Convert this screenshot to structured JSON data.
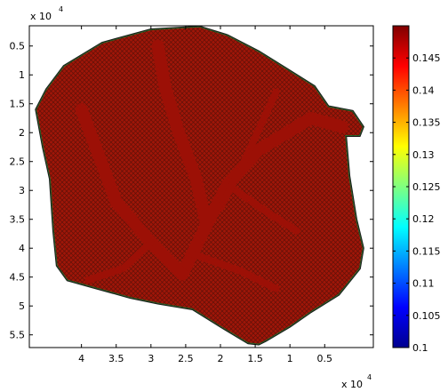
{
  "chart_data": {
    "type": "heatmap",
    "title": "",
    "xlabel": "",
    "ylabel": "",
    "x_exponent_label": "x 10",
    "x_exponent_power": "4",
    "y_exponent_label": "x 10",
    "y_exponent_power": "4",
    "x_axis": {
      "direction": "reversed",
      "lim": [
        -0.2,
        4.75
      ],
      "ticks": [
        4,
        3.5,
        3,
        2.5,
        2,
        1.5,
        1,
        0.5
      ],
      "tick_labels": [
        "4",
        "3.5",
        "3",
        "2.5",
        "2",
        "1.5",
        "1",
        "0.5"
      ]
    },
    "y_axis": {
      "direction": "reversed",
      "lim": [
        0.15,
        5.72
      ],
      "ticks": [
        0.5,
        1,
        1.5,
        2,
        2.5,
        3,
        3.5,
        4,
        4.5,
        5,
        5.5
      ],
      "tick_labels": [
        "0.5",
        "1",
        "1.5",
        "2",
        "2.5",
        "3",
        "3.5",
        "4",
        "4.5",
        "5",
        "5.5"
      ]
    },
    "colorbar": {
      "colormap": "jet",
      "lim": [
        0.1,
        0.15
      ],
      "ticks": [
        0.1,
        0.105,
        0.11,
        0.115,
        0.12,
        0.125,
        0.13,
        0.135,
        0.14,
        0.145
      ],
      "tick_labels": [
        "0.1",
        "0.105",
        "0.11",
        "0.115",
        "0.12",
        "0.125",
        "0.13",
        "0.135",
        "0.14",
        "0.145"
      ]
    },
    "region": {
      "dominant_value": 0.149,
      "fill_color": "#a01608",
      "texture_color": "#2a0a06",
      "highlight_color": "#c8a020",
      "boundary": [
        [
          2.3,
          0.17
        ],
        [
          1.9,
          0.32
        ],
        [
          1.45,
          0.6
        ],
        [
          1.05,
          0.9
        ],
        [
          0.65,
          1.2
        ],
        [
          0.45,
          1.55
        ],
        [
          0.1,
          1.63
        ],
        [
          -0.05,
          1.9
        ],
        [
          0.0,
          2.05
        ],
        [
          0.2,
          2.05
        ],
        [
          0.15,
          2.75
        ],
        [
          0.05,
          3.5
        ],
        [
          -0.05,
          4.0
        ],
        [
          0.0,
          4.35
        ],
        [
          0.3,
          4.8
        ],
        [
          0.7,
          5.1
        ],
        [
          1.0,
          5.35
        ],
        [
          1.35,
          5.6
        ],
        [
          1.45,
          5.66
        ],
        [
          1.6,
          5.64
        ],
        [
          2.0,
          5.35
        ],
        [
          2.4,
          5.05
        ],
        [
          2.9,
          4.95
        ],
        [
          3.3,
          4.85
        ],
        [
          3.9,
          4.65
        ],
        [
          4.2,
          4.55
        ],
        [
          4.35,
          4.3
        ],
        [
          4.4,
          3.7
        ],
        [
          4.45,
          2.8
        ],
        [
          4.55,
          2.25
        ],
        [
          4.65,
          1.6
        ],
        [
          4.5,
          1.25
        ],
        [
          4.25,
          0.85
        ],
        [
          3.7,
          0.45
        ],
        [
          3.0,
          0.22
        ]
      ],
      "channels": [
        [
          [
            2.55,
            4.45
          ],
          [
            2.2,
            3.6
          ],
          [
            1.9,
            2.9
          ],
          [
            1.45,
            2.3
          ],
          [
            0.7,
            1.75
          ],
          [
            0.25,
            1.9
          ]
        ],
        [
          [
            2.55,
            4.45
          ],
          [
            3.0,
            3.9
          ],
          [
            3.5,
            3.2
          ],
          [
            3.75,
            2.4
          ],
          [
            4.0,
            1.6
          ]
        ],
        [
          [
            2.2,
            3.6
          ],
          [
            2.35,
            2.8
          ],
          [
            2.6,
            2.0
          ],
          [
            2.8,
            1.2
          ],
          [
            2.9,
            0.5
          ]
        ],
        [
          [
            1.9,
            2.9
          ],
          [
            1.3,
            3.4
          ],
          [
            0.9,
            3.7
          ]
        ],
        [
          [
            3.0,
            3.9
          ],
          [
            3.4,
            4.35
          ],
          [
            3.9,
            4.55
          ]
        ],
        [
          [
            2.4,
            4.1
          ],
          [
            1.7,
            4.4
          ],
          [
            1.2,
            4.7
          ]
        ],
        [
          [
            2.0,
            3.3
          ],
          [
            1.7,
            2.6
          ],
          [
            1.2,
            1.3
          ]
        ]
      ]
    }
  }
}
